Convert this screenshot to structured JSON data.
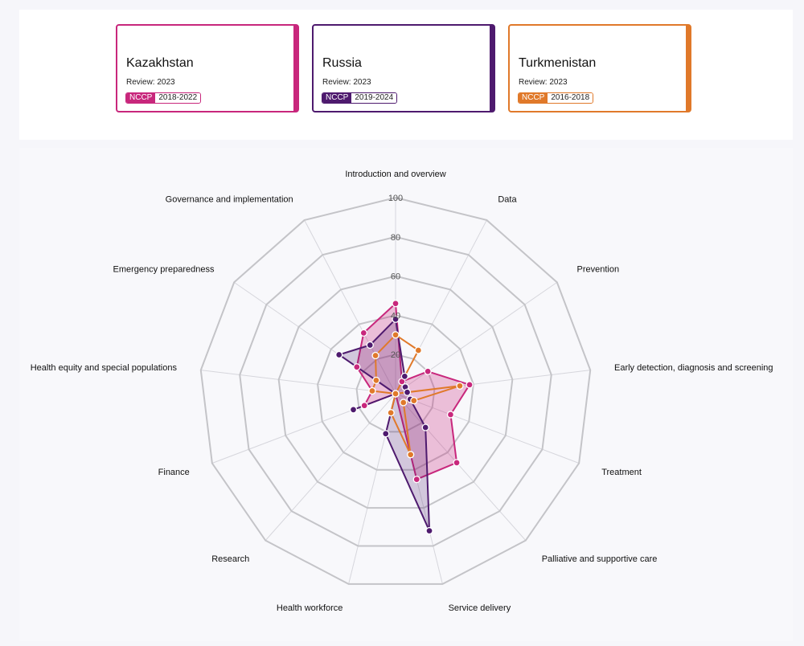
{
  "cards": [
    {
      "country": "Kazakhstan",
      "review": "Review: 2023",
      "tag": "NCCP",
      "years": "2018-2022",
      "color": "#c8277c"
    },
    {
      "country": "Russia",
      "review": "Review: 2023",
      "tag": "NCCP",
      "years": "2019-2024",
      "color": "#4e1a6e"
    },
    {
      "country": "Turkmenistan",
      "review": "Review: 2023",
      "tag": "NCCP",
      "years": "2016-2018",
      "color": "#e0792a"
    }
  ],
  "chart_data": {
    "type": "radar",
    "title": "",
    "categories": [
      "Introduction and overview",
      "Data",
      "Prevention",
      "Early detection, diagnosis and screening",
      "Treatment",
      "Palliative and supportive care",
      "Service delivery",
      "Health workforce",
      "Research",
      "Finance",
      "Health equity and special populations",
      "Emergency preparedness",
      "Governance and implementation"
    ],
    "rmax": 100,
    "ticks": [
      "20",
      "40",
      "60",
      "80",
      "100"
    ],
    "grid": true,
    "series": [
      {
        "name": "Kazakhstan",
        "color": "#c8277c",
        "values": [
          46,
          7,
          20,
          38,
          30,
          47,
          45,
          0,
          0,
          17,
          12,
          24,
          35
        ]
      },
      {
        "name": "Russia",
        "color": "#4e1a6e",
        "values": [
          38,
          10,
          6,
          6,
          8,
          23,
          72,
          21,
          0,
          23,
          0,
          35,
          28
        ]
      },
      {
        "name": "Turkmenistan",
        "color": "#e0792a",
        "values": [
          30,
          25,
          0,
          33,
          10,
          6,
          32,
          10,
          0,
          0,
          12,
          12,
          22
        ]
      }
    ]
  }
}
